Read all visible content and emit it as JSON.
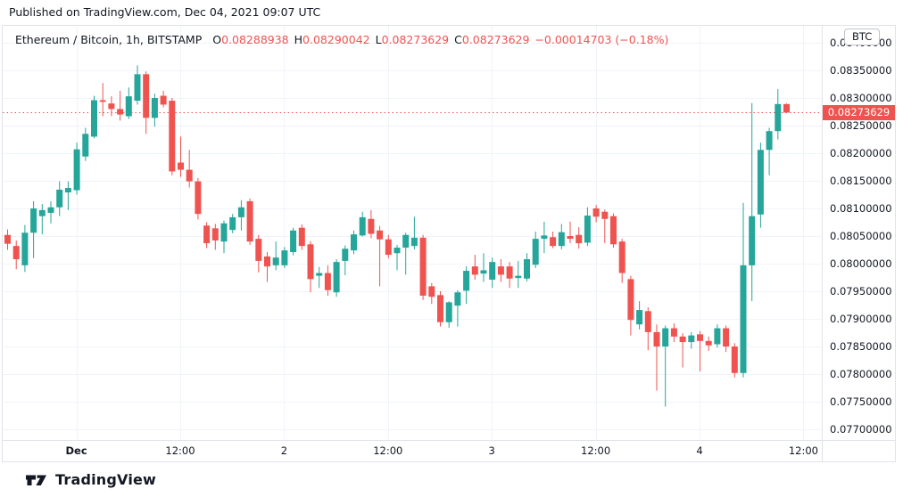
{
  "publish_line": "Published on TradingView.com, Dec 04, 2021 09:07 UTC",
  "logo": {
    "text": "TradingView"
  },
  "legend": {
    "symbol_text": "Ethereum / Bitcoin, 1h, BITSTAMP",
    "o_label": "O",
    "o_value": "0.08288938",
    "h_label": "H",
    "h_value": "0.08290042",
    "l_label": "L",
    "l_value": "0.08273629",
    "c_label": "C",
    "c_value": "0.08273629",
    "change_text": "−0.00014703 (−0.18%)"
  },
  "unit_button": "BTC",
  "colors": {
    "up": "#26a69a",
    "down": "#ef5350",
    "grid": "#f0f3fa",
    "border": "#e0e3eb",
    "text": "#131722",
    "price_line": "#ef5350",
    "price_label_bg": "#ef5350",
    "price_label_text": "#ffffff"
  },
  "chart_data": {
    "type": "candlestick",
    "symbol": "Ethereum / Bitcoin",
    "interval": "1h",
    "exchange": "BITSTAMP",
    "unit": "BTC",
    "last_bar": {
      "open": 0.08288938,
      "high": 0.08290042,
      "low": 0.08273629,
      "close": 0.08273629,
      "change": -0.00014703,
      "change_pct": -0.18
    },
    "price_line": {
      "value": 0.08273629,
      "label": "0.08273629"
    },
    "y_axis": {
      "min": 0.077,
      "max": 0.084,
      "step": 0.0005,
      "labels": [
        "0.08400000",
        "0.08350000",
        "0.08300000",
        "0.08250000",
        "0.08200000",
        "0.08150000",
        "0.08100000",
        "0.08050000",
        "0.08000000",
        "0.07950000",
        "0.07900000",
        "0.07850000",
        "0.07800000",
        "0.07750000",
        "0.07700000"
      ]
    },
    "x_ticks": [
      {
        "label": "Dec",
        "index": 8,
        "bold": true
      },
      {
        "label": "12:00",
        "index": 20,
        "bold": false
      },
      {
        "label": "2",
        "index": 32,
        "bold": false
      },
      {
        "label": "12:00",
        "index": 44,
        "bold": false
      },
      {
        "label": "3",
        "index": 56,
        "bold": false
      },
      {
        "label": "12:00",
        "index": 68,
        "bold": false
      },
      {
        "label": "4",
        "index": 80,
        "bold": false
      },
      {
        "label": "12:00",
        "index": 92,
        "bold": false
      }
    ],
    "candles": [
      [
        0.08052,
        0.08062,
        0.08025,
        0.08036
      ],
      [
        0.08032,
        0.08042,
        0.0799,
        0.08008
      ],
      [
        0.07997,
        0.0807,
        0.07985,
        0.08056
      ],
      [
        0.08056,
        0.08113,
        0.0801,
        0.081
      ],
      [
        0.08086,
        0.08108,
        0.08053,
        0.08097
      ],
      [
        0.08092,
        0.08113,
        0.08073,
        0.08102
      ],
      [
        0.08102,
        0.08149,
        0.08086,
        0.08134
      ],
      [
        0.08129,
        0.08149,
        0.08097,
        0.08137
      ],
      [
        0.08133,
        0.08219,
        0.08125,
        0.08207
      ],
      [
        0.08194,
        0.08246,
        0.08186,
        0.08235
      ],
      [
        0.0823,
        0.08304,
        0.08227,
        0.08296
      ],
      [
        0.08296,
        0.08327,
        0.08267,
        0.08293
      ],
      [
        0.0829,
        0.08303,
        0.08267,
        0.0828
      ],
      [
        0.0828,
        0.08313,
        0.08259,
        0.0827
      ],
      [
        0.08267,
        0.08319,
        0.08262,
        0.08303
      ],
      [
        0.08295,
        0.08359,
        0.08288,
        0.08343
      ],
      [
        0.08343,
        0.08348,
        0.08235,
        0.08264
      ],
      [
        0.08264,
        0.08308,
        0.08248,
        0.083
      ],
      [
        0.08304,
        0.08313,
        0.08283,
        0.08288
      ],
      [
        0.08295,
        0.083,
        0.0816,
        0.08167
      ],
      [
        0.08183,
        0.0823,
        0.08157,
        0.0817
      ],
      [
        0.0817,
        0.08206,
        0.08138,
        0.08149
      ],
      [
        0.08149,
        0.08155,
        0.0808,
        0.0809
      ],
      [
        0.08069,
        0.08075,
        0.08028,
        0.08037
      ],
      [
        0.08064,
        0.08072,
        0.08025,
        0.08042
      ],
      [
        0.0804,
        0.08078,
        0.08019,
        0.08073
      ],
      [
        0.08061,
        0.0809,
        0.08055,
        0.08084
      ],
      [
        0.08084,
        0.08115,
        0.0806,
        0.08102
      ],
      [
        0.08113,
        0.08118,
        0.08034,
        0.0804
      ],
      [
        0.08045,
        0.08052,
        0.07984,
        0.08005
      ],
      [
        0.08013,
        0.08021,
        0.07967,
        0.07995
      ],
      [
        0.07997,
        0.0804,
        0.07988,
        0.08011
      ],
      [
        0.07997,
        0.0803,
        0.07992,
        0.08024
      ],
      [
        0.08021,
        0.08065,
        0.08015,
        0.0806
      ],
      [
        0.08065,
        0.08071,
        0.08025,
        0.08032
      ],
      [
        0.08035,
        0.08041,
        0.07948,
        0.07972
      ],
      [
        0.07978,
        0.07994,
        0.07956,
        0.07983
      ],
      [
        0.07983,
        0.07997,
        0.07942,
        0.07952
      ],
      [
        0.07948,
        0.08008,
        0.0794,
        0.08003
      ],
      [
        0.08005,
        0.08033,
        0.07979,
        0.08027
      ],
      [
        0.08024,
        0.0806,
        0.08017,
        0.08053
      ],
      [
        0.08051,
        0.08094,
        0.08049,
        0.08084
      ],
      [
        0.08081,
        0.08097,
        0.08046,
        0.08054
      ],
      [
        0.0806,
        0.08068,
        0.07959,
        0.08044
      ],
      [
        0.08044,
        0.08052,
        0.0801,
        0.08016
      ],
      [
        0.08019,
        0.08034,
        0.07988,
        0.08029
      ],
      [
        0.08029,
        0.08056,
        0.0798,
        0.08052
      ],
      [
        0.08032,
        0.08085,
        0.08026,
        0.08047
      ],
      [
        0.08047,
        0.08052,
        0.07934,
        0.07942
      ],
      [
        0.07959,
        0.07965,
        0.07927,
        0.0794
      ],
      [
        0.07943,
        0.0795,
        0.07886,
        0.07894
      ],
      [
        0.07894,
        0.07932,
        0.07884,
        0.0793
      ],
      [
        0.07924,
        0.07952,
        0.07886,
        0.07948
      ],
      [
        0.07951,
        0.07995,
        0.07927,
        0.07987
      ],
      [
        0.07995,
        0.08016,
        0.07971,
        0.0798
      ],
      [
        0.07982,
        0.08019,
        0.07967,
        0.07988
      ],
      [
        0.07971,
        0.08011,
        0.07956,
        0.08003
      ],
      [
        0.07995,
        0.08008,
        0.07967,
        0.0798
      ],
      [
        0.07995,
        0.08003,
        0.07956,
        0.07973
      ],
      [
        0.07974,
        0.08005,
        0.07956,
        0.07978
      ],
      [
        0.07973,
        0.08019,
        0.07968,
        0.08008
      ],
      [
        0.07998,
        0.08058,
        0.07992,
        0.08045
      ],
      [
        0.08045,
        0.08076,
        0.08019,
        0.08051
      ],
      [
        0.08048,
        0.08058,
        0.08028,
        0.08032
      ],
      [
        0.08032,
        0.08072,
        0.08026,
        0.08057
      ],
      [
        0.0805,
        0.08076,
        0.08037,
        0.08045
      ],
      [
        0.08052,
        0.08066,
        0.08027,
        0.08037
      ],
      [
        0.08038,
        0.08102,
        0.08032,
        0.08087
      ],
      [
        0.081,
        0.08106,
        0.08075,
        0.08085
      ],
      [
        0.08094,
        0.08098,
        0.08037,
        0.08081
      ],
      [
        0.08086,
        0.08091,
        0.08029,
        0.08035
      ],
      [
        0.0804,
        0.08045,
        0.07965,
        0.07983
      ],
      [
        0.07972,
        0.07978,
        0.0787,
        0.07898
      ],
      [
        0.0789,
        0.07932,
        0.07881,
        0.07916
      ],
      [
        0.07914,
        0.07921,
        0.07843,
        0.07876
      ],
      [
        0.07876,
        0.0789,
        0.0777,
        0.0785
      ],
      [
        0.0785,
        0.07888,
        0.07741,
        0.07883
      ],
      [
        0.07883,
        0.07892,
        0.07858,
        0.07868
      ],
      [
        0.07868,
        0.07874,
        0.07812,
        0.07858
      ],
      [
        0.07858,
        0.07876,
        0.07846,
        0.0787
      ],
      [
        0.07872,
        0.07878,
        0.07805,
        0.0786
      ],
      [
        0.0786,
        0.07868,
        0.07842,
        0.07852
      ],
      [
        0.07854,
        0.0789,
        0.07848,
        0.07883
      ],
      [
        0.07883,
        0.07888,
        0.0784,
        0.0785
      ],
      [
        0.0785,
        0.07856,
        0.07794,
        0.07802
      ],
      [
        0.07802,
        0.0811,
        0.07794,
        0.07997
      ],
      [
        0.07997,
        0.08291,
        0.07932,
        0.08086
      ],
      [
        0.08089,
        0.08219,
        0.08065,
        0.08206
      ],
      [
        0.08206,
        0.08246,
        0.0816,
        0.0824
      ],
      [
        0.0824,
        0.08316,
        0.08225,
        0.08289
      ],
      [
        0.08288938,
        0.08290042,
        0.08273629,
        0.08273629
      ]
    ]
  }
}
